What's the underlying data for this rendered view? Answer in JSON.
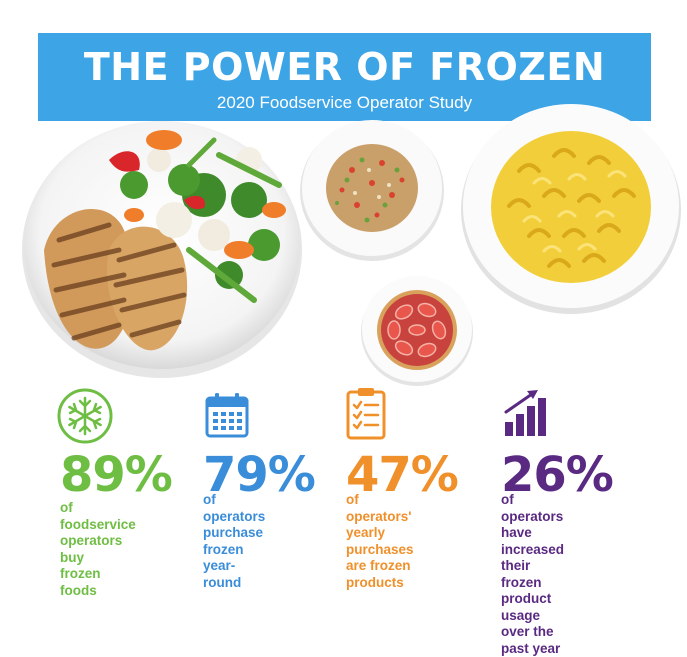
{
  "header": {
    "title": "THE POWER OF FROZEN",
    "subtitle": "2020 Foodservice Operator Study"
  },
  "colors": {
    "banner": "#3da5e6",
    "green": "#6fbe44",
    "blue": "#3a8dd8",
    "orange": "#f0902b",
    "purple": "#5a2a82"
  },
  "images": [
    {
      "name": "plate-chicken-vegetables"
    },
    {
      "name": "bowl-fried-rice"
    },
    {
      "name": "plate-mac-and-cheese"
    },
    {
      "name": "strawberry-tart"
    }
  ],
  "stats": [
    {
      "icon": "snowflake-icon",
      "value": "89%",
      "lines": [
        "of foodservice",
        "operators buy",
        "frozen foods"
      ]
    },
    {
      "icon": "calendar-icon",
      "value": "79%",
      "lines": [
        "of operators",
        "purchase frozen",
        "year-round"
      ]
    },
    {
      "icon": "clipboard-checklist-icon",
      "value": "47%",
      "lines": [
        "of operators'",
        "yearly purchases",
        "are frozen products"
      ]
    },
    {
      "icon": "growth-chart-icon",
      "value": "26%",
      "lines": [
        "of operators have",
        "increased their",
        "frozen product usage",
        "over the past year"
      ]
    }
  ]
}
